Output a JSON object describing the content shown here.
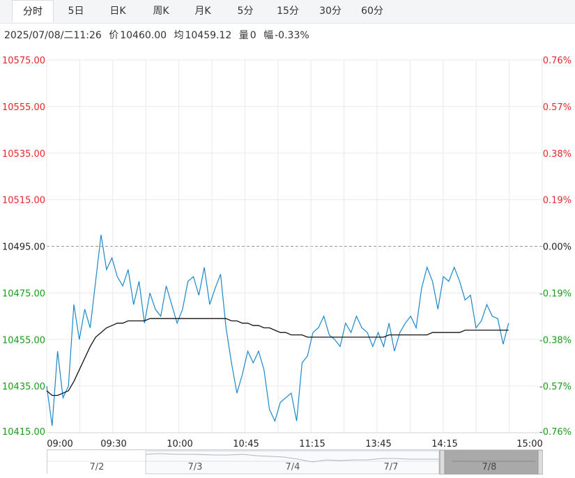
{
  "tabs": [
    {
      "label": "分时",
      "active": true
    },
    {
      "label": "5日",
      "active": false
    },
    {
      "label": "日K",
      "active": false
    },
    {
      "label": "周K",
      "active": false
    },
    {
      "label": "月K",
      "active": false
    },
    {
      "label": "5分",
      "active": false
    },
    {
      "label": "15分",
      "active": false
    },
    {
      "label": "30分",
      "active": false
    },
    {
      "label": "60分",
      "active": false
    }
  ],
  "info": {
    "datetime": "2025/07/08/二11:26",
    "price_label": "价",
    "price": "10460.00",
    "avg_label": "均",
    "avg": "10459.12",
    "vol_label": "量",
    "vol": "0",
    "change_label": "幅",
    "change": "-0.33%"
  },
  "colors": {
    "up": "#e8262a",
    "down": "#1a9b1a",
    "neutral": "#222222",
    "price_line": "#1b87c9",
    "avg_line": "#111111",
    "grid": "#e8eaed"
  },
  "chart_data": {
    "type": "line",
    "ylim": [
      10415,
      10575
    ],
    "prev_close": 10495.0,
    "y_ticks": [
      "10575.00",
      "10555.00",
      "10535.00",
      "10515.00",
      "10495.00",
      "10475.00",
      "10455.00",
      "10435.00",
      "10415.00"
    ],
    "pct_ticks": [
      "0.76%",
      "0.57%",
      "0.38%",
      "0.19%",
      "0.00%",
      "-0.19%",
      "-0.38%",
      "-0.57%",
      "-0.76%"
    ],
    "x_ticks": [
      "09:00",
      "09:30",
      "10:00",
      "10:45",
      "11:15",
      "13:45",
      "14:15",
      "15:00"
    ],
    "series": [
      {
        "values": [
          10435,
          10418,
          10450,
          10430,
          10435,
          10470,
          10455,
          10468,
          10460,
          10480,
          10500,
          10485,
          10490,
          10482,
          10478,
          10485,
          10470,
          10480,
          10462,
          10475,
          10468,
          10465,
          10478,
          10470,
          10462,
          10468,
          10480,
          10482,
          10474,
          10486,
          10470,
          10477,
          10483,
          10460,
          10445,
          10432,
          10440,
          10450,
          10445,
          10450,
          10442,
          10425,
          10420,
          10428,
          10430,
          10432,
          10420,
          10445,
          10448,
          10458,
          10460,
          10465,
          10457,
          10455,
          10452,
          10462,
          10458,
          10465,
          10460,
          10458,
          10452,
          10458,
          10452,
          10462,
          10450,
          10458,
          10462,
          10465,
          10460,
          10477,
          10486,
          10480,
          10468,
          10482,
          10480,
          10486,
          10480,
          10472,
          10474,
          10460,
          10463,
          10470,
          10465,
          10464,
          10453,
          10462
        ],
        "color": "#1b87c9"
      },
      {
        "values": [
          10433,
          10431,
          10431,
          10432,
          10433,
          10437,
          10442,
          10447,
          10452,
          10456,
          10458,
          10460,
          10461,
          10462,
          10462,
          10463,
          10463,
          10463,
          10463,
          10464,
          10464,
          10464,
          10464,
          10464,
          10464,
          10464,
          10464,
          10464,
          10464,
          10464,
          10464,
          10464,
          10464,
          10464,
          10463,
          10463,
          10462,
          10462,
          10461,
          10461,
          10460,
          10460,
          10459,
          10458,
          10458,
          10457,
          10457,
          10457,
          10456,
          10456,
          10456,
          10456,
          10456,
          10456,
          10456,
          10456,
          10456,
          10456,
          10456,
          10456,
          10456,
          10456,
          10456,
          10457,
          10457,
          10457,
          10457,
          10457,
          10457,
          10457,
          10457,
          10458,
          10458,
          10458,
          10458,
          10458,
          10458,
          10459,
          10459,
          10459,
          10459,
          10459,
          10459,
          10459,
          10459,
          10459
        ],
        "color": "#111111"
      }
    ]
  },
  "navigator": {
    "labels": [
      "7/2",
      "7/3",
      "7/4",
      "7/7",
      "7/8"
    ]
  }
}
